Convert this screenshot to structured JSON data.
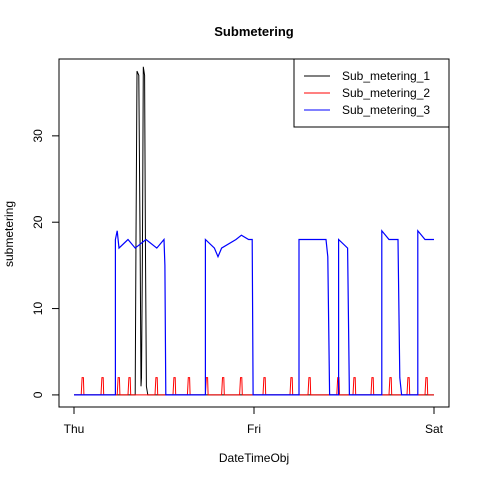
{
  "chart_data": {
    "type": "line",
    "title": "Submetering",
    "xlabel": "DateTimeObj",
    "ylabel": "submetering",
    "x_unit": "days",
    "xlim": [
      0,
      2
    ],
    "ylim": [
      -1.4,
      38.9
    ],
    "x_ticks": [
      {
        "value": 0,
        "label": "Thu"
      },
      {
        "value": 1,
        "label": "Fri"
      },
      {
        "value": 2,
        "label": "Sat"
      }
    ],
    "y_ticks": [
      0,
      10,
      20,
      30
    ],
    "grid": false,
    "legend_position": "top-right",
    "series": [
      {
        "name": "Sub_metering_1",
        "color": "#000000",
        "points": [
          [
            0,
            0
          ],
          [
            0.3,
            0
          ],
          [
            0.34,
            0
          ],
          [
            0.344,
            16
          ],
          [
            0.35,
            37.5
          ],
          [
            0.36,
            37
          ],
          [
            0.368,
            16
          ],
          [
            0.372,
            1
          ],
          [
            0.375,
            2
          ],
          [
            0.38,
            16
          ],
          [
            0.385,
            38
          ],
          [
            0.392,
            37
          ],
          [
            0.397,
            16
          ],
          [
            0.402,
            1
          ],
          [
            0.41,
            0
          ],
          [
            2,
            0
          ]
        ]
      },
      {
        "name": "Sub_metering_2",
        "color": "#ff0000",
        "points": [
          [
            0,
            0
          ],
          [
            0.04,
            0
          ],
          [
            0.045,
            2
          ],
          [
            0.052,
            2
          ],
          [
            0.055,
            0
          ],
          [
            0.15,
            0
          ],
          [
            0.155,
            2
          ],
          [
            0.162,
            2
          ],
          [
            0.165,
            0
          ],
          [
            0.24,
            0
          ],
          [
            0.245,
            2
          ],
          [
            0.252,
            2
          ],
          [
            0.255,
            0
          ],
          [
            0.3,
            0
          ],
          [
            0.305,
            2
          ],
          [
            0.312,
            2
          ],
          [
            0.315,
            0
          ],
          [
            0.45,
            0
          ],
          [
            0.455,
            2
          ],
          [
            0.462,
            2
          ],
          [
            0.465,
            0
          ],
          [
            0.55,
            0
          ],
          [
            0.555,
            2
          ],
          [
            0.562,
            2
          ],
          [
            0.565,
            0
          ],
          [
            0.63,
            0
          ],
          [
            0.635,
            2
          ],
          [
            0.642,
            2
          ],
          [
            0.645,
            0
          ],
          [
            0.73,
            0
          ],
          [
            0.735,
            2
          ],
          [
            0.742,
            2
          ],
          [
            0.745,
            0
          ],
          [
            0.82,
            0
          ],
          [
            0.825,
            2
          ],
          [
            0.832,
            2
          ],
          [
            0.835,
            0
          ],
          [
            0.92,
            0
          ],
          [
            0.925,
            2
          ],
          [
            0.932,
            2
          ],
          [
            0.935,
            0
          ],
          [
            1.05,
            0
          ],
          [
            1.055,
            2
          ],
          [
            1.062,
            2
          ],
          [
            1.065,
            0
          ],
          [
            1.2,
            0
          ],
          [
            1.205,
            2
          ],
          [
            1.212,
            2
          ],
          [
            1.215,
            0
          ],
          [
            1.3,
            0
          ],
          [
            1.305,
            2
          ],
          [
            1.312,
            2
          ],
          [
            1.315,
            0
          ],
          [
            1.46,
            0
          ],
          [
            1.465,
            2
          ],
          [
            1.472,
            2
          ],
          [
            1.475,
            0
          ],
          [
            1.55,
            0
          ],
          [
            1.555,
            2
          ],
          [
            1.562,
            2
          ],
          [
            1.565,
            0
          ],
          [
            1.65,
            0
          ],
          [
            1.655,
            2
          ],
          [
            1.662,
            2
          ],
          [
            1.665,
            0
          ],
          [
            1.75,
            0
          ],
          [
            1.755,
            2
          ],
          [
            1.762,
            2
          ],
          [
            1.765,
            0
          ],
          [
            1.85,
            0
          ],
          [
            1.855,
            2
          ],
          [
            1.862,
            2
          ],
          [
            1.865,
            0
          ],
          [
            1.95,
            0
          ],
          [
            1.955,
            2
          ],
          [
            1.962,
            2
          ],
          [
            1.965,
            0
          ],
          [
            2,
            0
          ]
        ]
      },
      {
        "name": "Sub_metering_3",
        "color": "#0000ff",
        "points": [
          [
            0,
            0
          ],
          [
            0.23,
            0
          ],
          [
            0.23,
            18
          ],
          [
            0.24,
            19
          ],
          [
            0.25,
            17
          ],
          [
            0.3,
            18
          ],
          [
            0.34,
            17
          ],
          [
            0.4,
            18
          ],
          [
            0.46,
            17
          ],
          [
            0.5,
            18
          ],
          [
            0.505,
            15
          ],
          [
            0.51,
            0
          ],
          [
            0.73,
            0
          ],
          [
            0.73,
            18
          ],
          [
            0.78,
            17
          ],
          [
            0.8,
            16
          ],
          [
            0.82,
            17
          ],
          [
            0.9,
            18
          ],
          [
            0.93,
            18.5
          ],
          [
            0.97,
            18
          ],
          [
            0.99,
            18
          ],
          [
            0.995,
            0
          ],
          [
            1.25,
            0
          ],
          [
            1.25,
            18
          ],
          [
            1.4,
            18
          ],
          [
            1.41,
            16
          ],
          [
            1.42,
            0
          ],
          [
            1.47,
            0
          ],
          [
            1.47,
            18
          ],
          [
            1.52,
            17
          ],
          [
            1.53,
            0
          ],
          [
            1.71,
            0
          ],
          [
            1.71,
            19
          ],
          [
            1.75,
            18
          ],
          [
            1.8,
            18
          ],
          [
            1.81,
            2
          ],
          [
            1.82,
            0
          ],
          [
            1.91,
            0
          ],
          [
            1.91,
            19
          ],
          [
            1.95,
            18
          ],
          [
            1.98,
            18
          ],
          [
            1.99,
            18
          ],
          [
            2,
            18
          ]
        ]
      }
    ]
  }
}
